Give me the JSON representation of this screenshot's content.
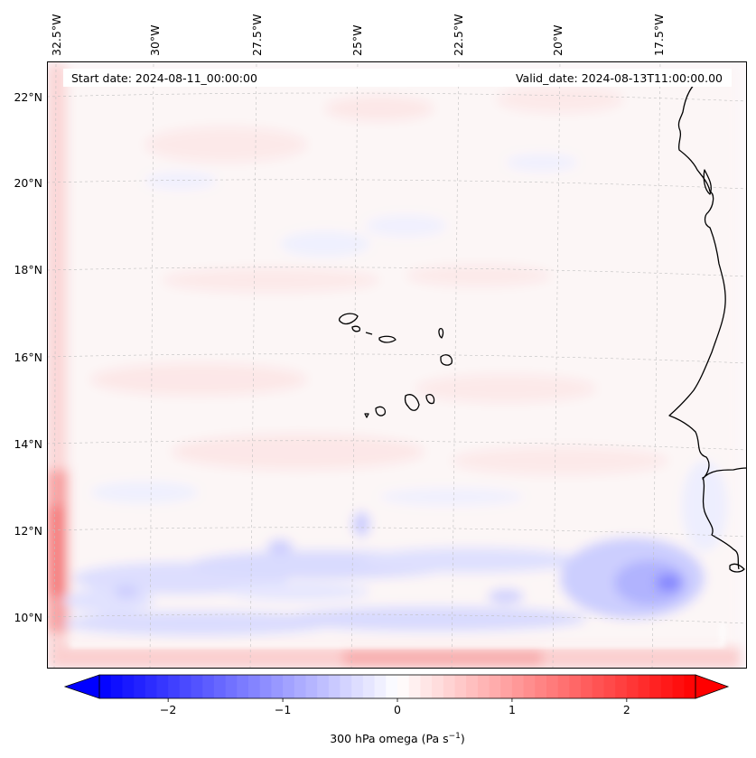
{
  "map": {
    "header_left": "Start date: 2024-08-11_00:00:00",
    "header_right": "Valid_date: 2024-08-13T11:00:00.00",
    "lon_labels": [
      "32.5°W",
      "30°W",
      "27.5°W",
      "25°W",
      "22.5°W",
      "20°W",
      "17.5°W"
    ],
    "lat_labels": [
      "22°N",
      "20°N",
      "18°N",
      "16°N",
      "14°N",
      "12°N",
      "10°N"
    ],
    "field": "300 hPa omega",
    "colors": {
      "negative": "#0000ff",
      "positive": "#ff0000",
      "neutral": "#ffffff",
      "coastline": "#000000",
      "grid": "#b0b0b0"
    }
  },
  "colorbar": {
    "ticks": [
      "−2",
      "−1",
      "0",
      "1",
      "2"
    ],
    "tick_values": [
      -2,
      -1,
      0,
      1,
      2
    ],
    "range": [
      -2.6,
      2.6
    ],
    "label_main": "300 hPa omega (Pa s",
    "label_sup": "−1",
    "label_end": ")"
  }
}
